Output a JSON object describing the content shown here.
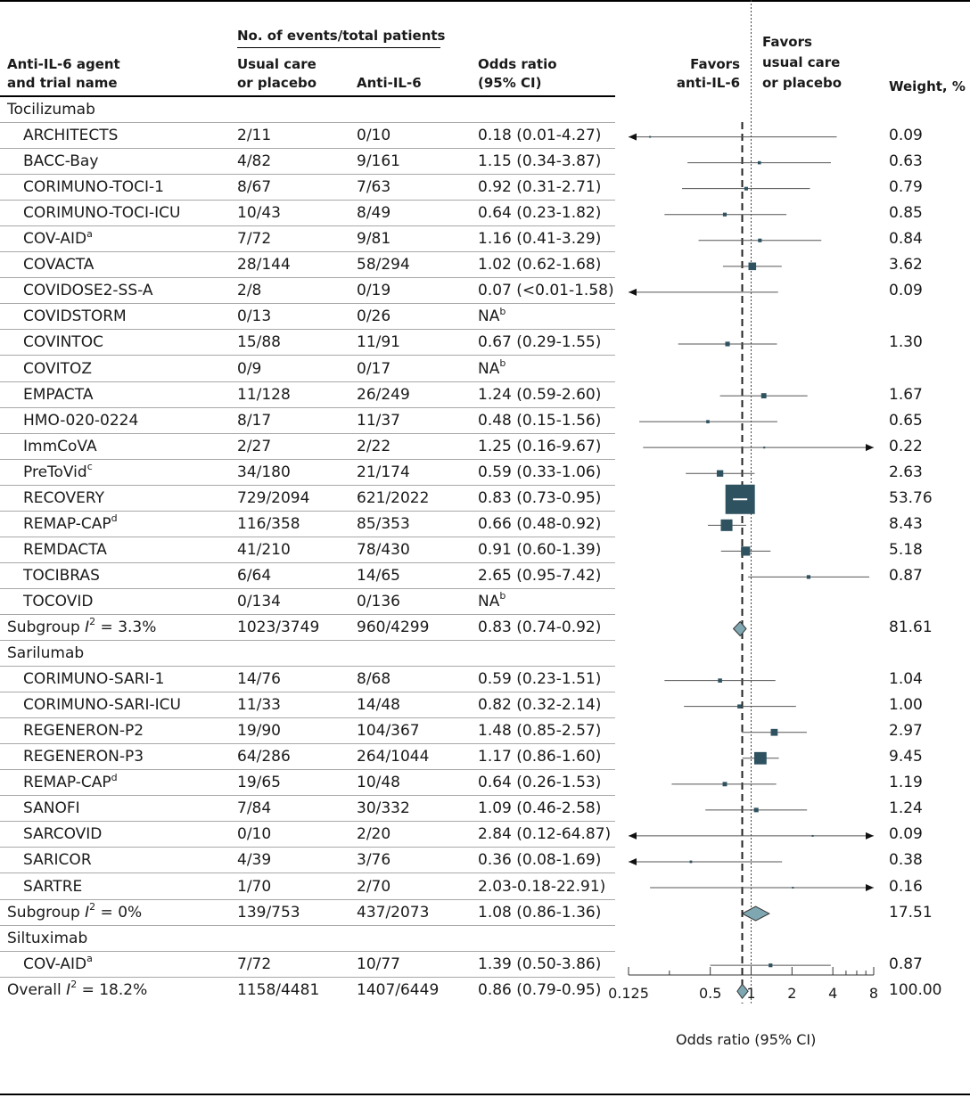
{
  "headers": {
    "agent_line1": "Anti-IL-6 agent",
    "agent_line2": "and trial name",
    "events_group": "No. of events/total patients",
    "usual_line1": "Usual care",
    "usual_line2": "or placebo",
    "anti": "Anti-IL-6",
    "or_line1": "Odds ratio",
    "or_line2": "(95% CI)",
    "favors_anti_line1": "Favors",
    "favors_anti_line2": "anti-IL-6",
    "favors_usual_line1": "Favors",
    "favors_usual_line2": "usual care",
    "favors_usual_line3": "or placebo",
    "weight": "Weight, %"
  },
  "colors": {
    "marker": "#2e5260",
    "diamond": "#7fa7b2",
    "line": "#555555"
  },
  "rows": [
    {
      "kind": "group",
      "name": "Tocilizumab"
    },
    {
      "kind": "study",
      "name": "ARCHITECTS",
      "usual": "2/11",
      "anti": "0/10",
      "or_text": "0.18 (0.01-4.27)",
      "weight": "0.09",
      "or": 0.18,
      "lo": 0.01,
      "hi": 4.27,
      "w": 0.09
    },
    {
      "kind": "study",
      "name": "BACC-Bay",
      "usual": "4/82",
      "anti": "9/161",
      "or_text": "1.15 (0.34-3.87)",
      "weight": "0.63",
      "or": 1.15,
      "lo": 0.34,
      "hi": 3.87,
      "w": 0.63
    },
    {
      "kind": "study",
      "name": "CORIMUNO-TOCI-1",
      "usual": "8/67",
      "anti": "7/63",
      "or_text": "0.92 (0.31-2.71)",
      "weight": "0.79",
      "or": 0.92,
      "lo": 0.31,
      "hi": 2.71,
      "w": 0.79
    },
    {
      "kind": "study",
      "name": "CORIMUNO-TOCI-ICU",
      "usual": "10/43",
      "anti": "8/49",
      "or_text": "0.64 (0.23-1.82)",
      "weight": "0.85",
      "or": 0.64,
      "lo": 0.23,
      "hi": 1.82,
      "w": 0.85
    },
    {
      "kind": "study",
      "name": "COV-AID",
      "sup": "a",
      "usual": "7/72",
      "anti": "9/81",
      "or_text": "1.16 (0.41-3.29)",
      "weight": "0.84",
      "or": 1.16,
      "lo": 0.41,
      "hi": 3.29,
      "w": 0.84
    },
    {
      "kind": "study",
      "name": "COVACTA",
      "usual": "28/144",
      "anti": "58/294",
      "or_text": "1.02 (0.62-1.68)",
      "weight": "3.62",
      "or": 1.02,
      "lo": 0.62,
      "hi": 1.68,
      "w": 3.62
    },
    {
      "kind": "study",
      "name": "COVIDOSE2-SS-A",
      "usual": "2/8",
      "anti": "0/19",
      "or_text": "0.07 (<0.01-1.58)",
      "weight": "0.09",
      "or": 0.07,
      "lo": 0.005,
      "hi": 1.58,
      "w": 0.09
    },
    {
      "kind": "study",
      "name": "COVIDSTORM",
      "usual": "0/13",
      "anti": "0/26",
      "or_text": "NA",
      "or_sup": "b",
      "weight": ""
    },
    {
      "kind": "study",
      "name": "COVINTOC",
      "usual": "15/88",
      "anti": "11/91",
      "or_text": "0.67 (0.29-1.55)",
      "weight": "1.30",
      "or": 0.67,
      "lo": 0.29,
      "hi": 1.55,
      "w": 1.3
    },
    {
      "kind": "study",
      "name": "COVITOZ",
      "usual": "0/9",
      "anti": "0/17",
      "or_text": "NA",
      "or_sup": "b",
      "weight": ""
    },
    {
      "kind": "study",
      "name": "EMPACTA",
      "usual": "11/128",
      "anti": "26/249",
      "or_text": "1.24 (0.59-2.60)",
      "weight": "1.67",
      "or": 1.24,
      "lo": 0.59,
      "hi": 2.6,
      "w": 1.67
    },
    {
      "kind": "study",
      "name": "HMO-020-0224",
      "usual": "8/17",
      "anti": "11/37",
      "or_text": "0.48 (0.15-1.56)",
      "weight": "0.65",
      "or": 0.48,
      "lo": 0.15,
      "hi": 1.56,
      "w": 0.65
    },
    {
      "kind": "study",
      "name": "ImmCoVA",
      "usual": "2/27",
      "anti": "2/22",
      "or_text": "1.25 (0.16-9.67)",
      "weight": "0.22",
      "or": 1.25,
      "lo": 0.16,
      "hi": 9.67,
      "w": 0.22
    },
    {
      "kind": "study",
      "name": "PreToVid",
      "sup": "c",
      "usual": "34/180",
      "anti": "21/174",
      "or_text": "0.59 (0.33-1.06)",
      "weight": "2.63",
      "or": 0.59,
      "lo": 0.33,
      "hi": 1.06,
      "w": 2.63
    },
    {
      "kind": "study",
      "name": "RECOVERY",
      "usual": "729/2094",
      "anti": "621/2022",
      "or_text": "0.83 (0.73-0.95)",
      "weight": "53.76",
      "or": 0.83,
      "lo": 0.73,
      "hi": 0.95,
      "w": 53.76
    },
    {
      "kind": "study",
      "name": "REMAP-CAP",
      "sup": "d",
      "usual": "116/358",
      "anti": "85/353",
      "or_text": "0.66 (0.48-0.92)",
      "weight": "8.43",
      "or": 0.66,
      "lo": 0.48,
      "hi": 0.92,
      "w": 8.43
    },
    {
      "kind": "study",
      "name": "REMDACTA",
      "usual": "41/210",
      "anti": "78/430",
      "or_text": "0.91 (0.60-1.39)",
      "weight": "5.18",
      "or": 0.91,
      "lo": 0.6,
      "hi": 1.39,
      "w": 5.18
    },
    {
      "kind": "study",
      "name": "TOCIBRAS",
      "usual": "6/64",
      "anti": "14/65",
      "or_text": "2.65 (0.95-7.42)",
      "weight": "0.87",
      "or": 2.65,
      "lo": 0.95,
      "hi": 7.42,
      "w": 0.87
    },
    {
      "kind": "study",
      "name": "TOCOVID",
      "usual": "0/134",
      "anti": "0/136",
      "or_text": "NA",
      "or_sup": "b",
      "weight": ""
    },
    {
      "kind": "subgroup",
      "name": "Subgroup ",
      "i2_sym": "I",
      "i2_sup": "2",
      "i2_text": " = 3.3%",
      "usual": "1023/3749",
      "anti": "960/4299",
      "or_text": "0.83 (0.74-0.92)",
      "weight": "81.61",
      "or": 0.83,
      "lo": 0.74,
      "hi": 0.92
    },
    {
      "kind": "group",
      "name": "Sarilumab"
    },
    {
      "kind": "study",
      "name": "CORIMUNO-SARI-1",
      "usual": "14/76",
      "anti": "8/68",
      "or_text": "0.59 (0.23-1.51)",
      "weight": "1.04",
      "or": 0.59,
      "lo": 0.23,
      "hi": 1.51,
      "w": 1.04
    },
    {
      "kind": "study",
      "name": "CORIMUNO-SARI-ICU",
      "usual": "11/33",
      "anti": "14/48",
      "or_text": "0.82 (0.32-2.14)",
      "weight": "1.00",
      "or": 0.82,
      "lo": 0.32,
      "hi": 2.14,
      "w": 1.0
    },
    {
      "kind": "study",
      "name": "REGENERON-P2",
      "usual": "19/90",
      "anti": "104/367",
      "or_text": "1.48 (0.85-2.57)",
      "weight": "2.97",
      "or": 1.48,
      "lo": 0.85,
      "hi": 2.57,
      "w": 2.97
    },
    {
      "kind": "study",
      "name": "REGENERON-P3",
      "usual": "64/286",
      "anti": "264/1044",
      "or_text": "1.17 (0.86-1.60)",
      "weight": "9.45",
      "or": 1.17,
      "lo": 0.86,
      "hi": 1.6,
      "w": 9.45
    },
    {
      "kind": "study",
      "name": "REMAP-CAP",
      "sup": "d",
      "usual": "19/65",
      "anti": "10/48",
      "or_text": "0.64 (0.26-1.53)",
      "weight": "1.19",
      "or": 0.64,
      "lo": 0.26,
      "hi": 1.53,
      "w": 1.19
    },
    {
      "kind": "study",
      "name": "SANOFI",
      "usual": "7/84",
      "anti": "30/332",
      "or_text": "1.09 (0.46-2.58)",
      "weight": "1.24",
      "or": 1.09,
      "lo": 0.46,
      "hi": 2.58,
      "w": 1.24
    },
    {
      "kind": "study",
      "name": "SARCOVID",
      "usual": "0/10",
      "anti": "2/20",
      "or_text": "2.84 (0.12-64.87)",
      "weight": "0.09",
      "or": 2.84,
      "lo": 0.12,
      "hi": 64.87,
      "w": 0.09
    },
    {
      "kind": "study",
      "name": "SARICOR",
      "usual": "4/39",
      "anti": "3/76",
      "or_text": "0.36 (0.08-1.69)",
      "weight": "0.38",
      "or": 0.36,
      "lo": 0.08,
      "hi": 1.69,
      "w": 0.38
    },
    {
      "kind": "study",
      "name": "SARTRE",
      "usual": "1/70",
      "anti": "2/70",
      "or_text": "2.03-0.18-22.91)",
      "weight": "0.16",
      "or": 2.03,
      "lo": 0.18,
      "hi": 22.91,
      "w": 0.16
    },
    {
      "kind": "subgroup",
      "name": "Subgroup ",
      "i2_sym": "I",
      "i2_sup": "2",
      "i2_text": " = 0%",
      "usual": "139/753",
      "anti": "437/2073",
      "or_text": "1.08 (0.86-1.36)",
      "weight": "17.51",
      "or": 1.08,
      "lo": 0.86,
      "hi": 1.36
    },
    {
      "kind": "group",
      "name": "Siltuximab"
    },
    {
      "kind": "study",
      "name": "COV-AID",
      "sup": "a",
      "usual": "7/72",
      "anti": "10/77",
      "or_text": "1.39 (0.50-3.86)",
      "weight": "0.87",
      "or": 1.39,
      "lo": 0.5,
      "hi": 3.86,
      "w": 0.87
    },
    {
      "kind": "overall",
      "name": "Overall ",
      "i2_sym": "I",
      "i2_sup": "2",
      "i2_text": " = 18.2%",
      "usual": "1158/4481",
      "anti": "1407/6449",
      "or_text": "0.86 (0.79-0.95)",
      "weight": "100.00",
      "or": 0.86,
      "lo": 0.79,
      "hi": 0.95
    }
  ],
  "chart_data": {
    "type": "forest",
    "xlabel": "Odds ratio (95% CI)",
    "xscale": "log",
    "xlim": [
      0.125,
      8
    ],
    "xticks": [
      0.125,
      0.5,
      1,
      2,
      4,
      8
    ],
    "xtick_labels": [
      "0.125",
      "0.5",
      "1",
      "2",
      "4",
      "8"
    ],
    "reference_line": 1,
    "pooled_line": 0.86
  }
}
